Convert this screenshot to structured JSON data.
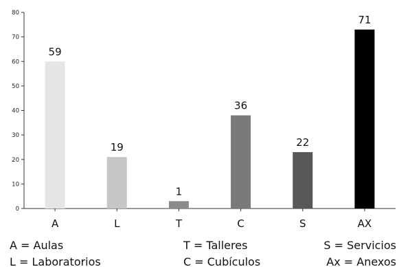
{
  "chart_data": {
    "type": "bar",
    "categories": [
      "A",
      "L",
      "T",
      "C",
      "S",
      "AX"
    ],
    "values": [
      59,
      19,
      1,
      36,
      22,
      71
    ],
    "bar_heights": [
      60,
      21,
      3,
      38,
      23,
      73
    ],
    "bar_colors": [
      "#e5e5e7",
      "#c6c6c8",
      "#8a8a8c",
      "#7a7a7c",
      "#58585a",
      "#000000"
    ],
    "ylim": [
      0,
      80
    ],
    "yticks": [
      0,
      10,
      20,
      30,
      40,
      50,
      60,
      70,
      80
    ],
    "grid": false,
    "title": "",
    "xlabel": "",
    "ylabel": ""
  },
  "legend": [
    [
      "A = Aulas",
      "L = Laboratorios"
    ],
    [
      "T = Talleres",
      "C = Cubículos"
    ],
    [
      "S = Servicios",
      "Ax = Anexos"
    ]
  ]
}
